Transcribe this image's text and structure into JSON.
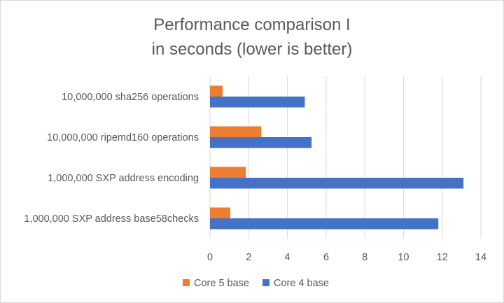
{
  "chart_data": {
    "type": "bar",
    "orientation": "horizontal",
    "title": "Performance comparison I",
    "subtitle": "in seconds (lower is better)",
    "categories": [
      "10,000,000 sha256 operations",
      "10,000,000 ripemd160 operations",
      "1,000,000 SXP address encoding",
      "1,000,000 SXP address base58checks"
    ],
    "series": [
      {
        "name": "Core 5 base",
        "color": "#ed7d31",
        "values": [
          0.65,
          2.65,
          1.85,
          1.05
        ]
      },
      {
        "name": "Core 4 base",
        "color": "#4472c4",
        "values": [
          4.9,
          5.25,
          13.1,
          11.8
        ]
      }
    ],
    "xlim": [
      0,
      14
    ],
    "xticks": [
      "0",
      "2",
      "4",
      "6",
      "8",
      "10",
      "12",
      "14"
    ],
    "xlabel": "",
    "ylabel": "",
    "grid": true,
    "legend": "bottom"
  }
}
